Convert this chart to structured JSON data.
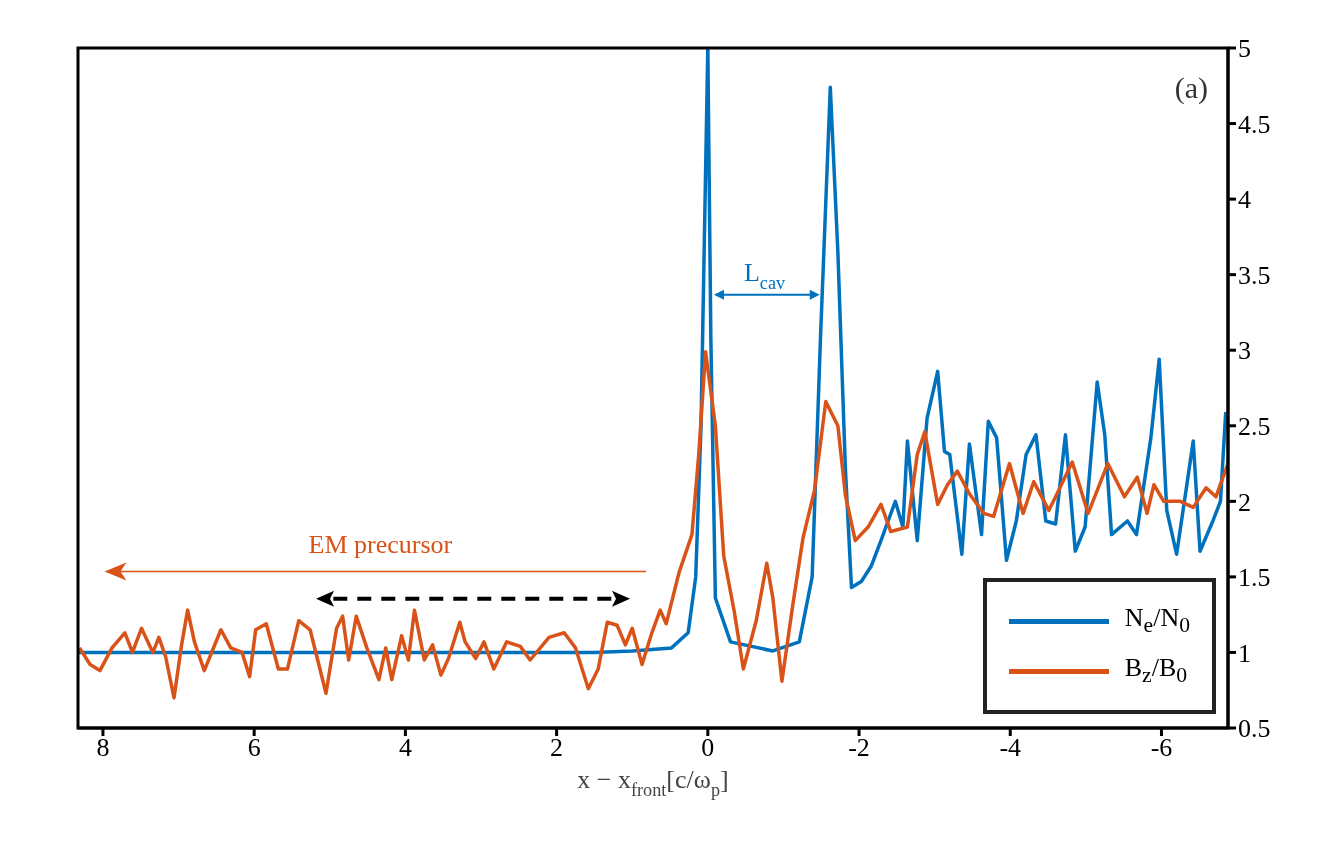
{
  "chart_data": {
    "type": "line",
    "xlabel": "x − x$_{front}$[c/ω$_{p}$]",
    "xlim": [
      8.33,
      -6.88
    ],
    "xticks": [
      8,
      6,
      4,
      2,
      0,
      -2,
      -4,
      -6
    ],
    "ylim": [
      0.5,
      5
    ],
    "yticks": [
      0.5,
      1,
      1.5,
      2,
      2.5,
      3,
      3.5,
      4,
      4.5,
      5
    ],
    "grid": false,
    "legend": "bottom right",
    "line_style": "solid",
    "annotations": [
      "(a)",
      "L$_{cav}$",
      "EM precursor"
    ],
    "series": [
      {
        "name": "N$_{e}$/N$_{0}$",
        "color": "#0072bd",
        "x": [
          8.33,
          7.5,
          6.5,
          5.5,
          4.5,
          3.5,
          2.5,
          1.5,
          1.0,
          0.48,
          0.26,
          0.16,
          0.09,
          0.0,
          -0.04,
          -0.1,
          -0.3,
          -0.86,
          -1.21,
          -1.38,
          -1.49,
          -1.62,
          -1.72,
          -1.82,
          -1.9,
          -2.03,
          -2.16,
          -2.29,
          -2.48,
          -2.58,
          -2.64,
          -2.77,
          -2.9,
          -3.04,
          -3.13,
          -3.2,
          -3.36,
          -3.46,
          -3.62,
          -3.71,
          -3.82,
          -3.95,
          -4.08,
          -4.21,
          -4.34,
          -4.47,
          -4.6,
          -4.73,
          -4.86,
          -4.99,
          -5.15,
          -5.25,
          -5.34,
          -5.55,
          -5.67,
          -5.86,
          -5.97,
          -6.07,
          -6.2,
          -6.33,
          -6.42,
          -6.51,
          -6.68,
          -6.78,
          -6.85
        ],
        "values": [
          1.0,
          1.0,
          1.0,
          1.0,
          1.0,
          1.0,
          1.0,
          1.0,
          1.01,
          1.03,
          1.13,
          1.5,
          2.5,
          5,
          3.08,
          1.36,
          1.07,
          1.01,
          1.07,
          1.5,
          3.08,
          4.74,
          3.65,
          2.21,
          1.43,
          1.47,
          1.57,
          1.74,
          2.0,
          1.83,
          2.4,
          1.74,
          2.55,
          2.86,
          2.33,
          2.31,
          1.65,
          2.38,
          1.78,
          2.53,
          2.42,
          1.61,
          1.87,
          2.31,
          2.44,
          1.87,
          1.85,
          2.44,
          1.67,
          1.83,
          2.79,
          2.44,
          1.78,
          1.87,
          1.78,
          2.42,
          2.94,
          1.94,
          1.65,
          2.09,
          2.4,
          1.67,
          1.87,
          2.0,
          2.59
        ]
      },
      {
        "name": "B$_{z}$/B$_{0}$",
        "color": "#d95319",
        "x": [
          8.31,
          8.17,
          8.04,
          7.88,
          7.71,
          7.61,
          7.49,
          7.34,
          7.26,
          7.17,
          7.06,
          6.96,
          6.88,
          6.79,
          6.66,
          6.44,
          6.31,
          6.16,
          6.06,
          5.98,
          5.84,
          5.68,
          5.56,
          5.41,
          5.26,
          5.05,
          4.91,
          4.83,
          4.75,
          4.65,
          4.51,
          4.35,
          4.26,
          4.18,
          4.05,
          3.96,
          3.88,
          3.75,
          3.64,
          3.53,
          3.43,
          3.28,
          3.21,
          3.07,
          2.96,
          2.83,
          2.66,
          2.48,
          2.35,
          2.1,
          1.9,
          1.75,
          1.58,
          1.45,
          1.33,
          1.2,
          1.09,
          1.0,
          0.87,
          0.74,
          0.63,
          0.55,
          0.38,
          0.21,
          0.12,
          0.03,
          -0.1,
          -0.21,
          -0.35,
          -0.47,
          -0.64,
          -0.78,
          -0.86,
          -0.98,
          -1.12,
          -1.26,
          -1.41,
          -1.56,
          -1.72,
          -1.82,
          -1.95,
          -2.12,
          -2.29,
          -2.42,
          -2.64,
          -2.77,
          -2.87,
          -3.04,
          -3.17,
          -3.3,
          -3.46,
          -3.65,
          -3.78,
          -3.99,
          -4.17,
          -4.31,
          -4.51,
          -4.6,
          -4.82,
          -5.03,
          -5.29,
          -5.51,
          -5.68,
          -5.81,
          -5.9,
          -6.03,
          -6.25,
          -6.42,
          -6.59,
          -6.72,
          -6.88
        ],
        "values": [
          1.03,
          0.92,
          0.88,
          1.03,
          1.13,
          1.0,
          1.16,
          1.0,
          1.1,
          0.97,
          0.7,
          1.05,
          1.28,
          1.07,
          0.88,
          1.15,
          1.03,
          1.0,
          0.84,
          1.15,
          1.19,
          0.89,
          0.89,
          1.21,
          1.15,
          0.73,
          1.16,
          1.24,
          0.95,
          1.24,
          1.03,
          0.82,
          1.03,
          0.82,
          1.11,
          0.95,
          1.28,
          0.95,
          1.05,
          0.85,
          0.96,
          1.2,
          1.07,
          0.96,
          1.07,
          0.89,
          1.07,
          1.04,
          0.95,
          1.1,
          1.13,
          1.03,
          0.76,
          0.89,
          1.2,
          1.18,
          1.05,
          1.16,
          0.92,
          1.13,
          1.28,
          1.19,
          1.53,
          1.78,
          2.31,
          2.99,
          2.5,
          1.64,
          1.27,
          0.89,
          1.21,
          1.59,
          1.36,
          0.81,
          1.3,
          1.76,
          2.07,
          2.66,
          2.5,
          2.04,
          1.74,
          1.83,
          1.98,
          1.8,
          1.83,
          2.31,
          2.46,
          1.98,
          2.11,
          2.2,
          2.05,
          1.92,
          1.9,
          2.25,
          1.92,
          2.13,
          1.94,
          2.03,
          2.26,
          1.92,
          2.25,
          2.03,
          2.16,
          1.92,
          2.11,
          2.0,
          2.0,
          1.96,
          2.09,
          2.03,
          2.25
        ]
      }
    ]
  }
}
